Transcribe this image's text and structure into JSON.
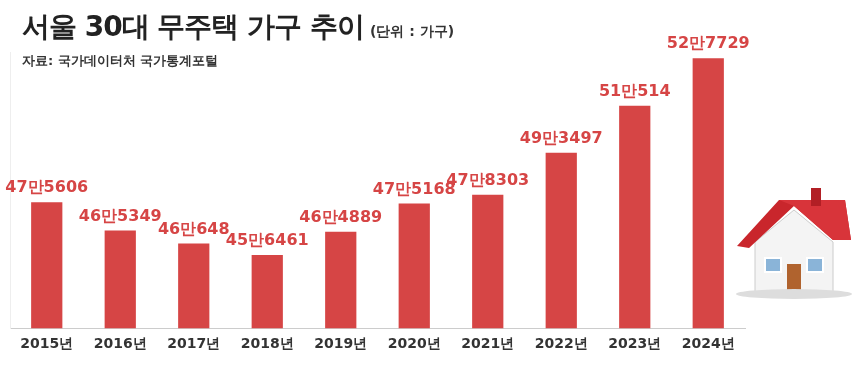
{
  "chart_data": {
    "type": "bar",
    "title": "서울 30대 무주택 가구 추이",
    "subtitle": "(단위 : 가구)",
    "source": "자료: 국가데이터처 국가통계포털",
    "categories": [
      "2015년",
      "2016년",
      "2017년",
      "2018년",
      "2019년",
      "2020년",
      "2021년",
      "2022년",
      "2023년",
      "2024년"
    ],
    "values": [
      475606,
      465349,
      460648,
      456461,
      464889,
      475168,
      478303,
      493497,
      510514,
      527729
    ],
    "value_labels": [
      "47만5606",
      "46만5349",
      "46만648",
      "45만6461",
      "46만4889",
      "47만5168",
      "47만8303",
      "49만3497",
      "51만514",
      "52만7729"
    ],
    "color": "#d64545",
    "ylim": [
      430000,
      530000
    ],
    "grid": false,
    "data_labels": true,
    "tick_labels": "x"
  }
}
